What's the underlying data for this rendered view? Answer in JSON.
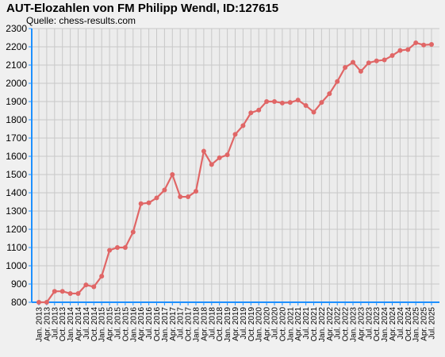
{
  "chart_data": {
    "type": "line",
    "title": "AUT-Elozahlen von FM Philipp Wendl, ID:127615",
    "subtitle": "Quelle: chess-results.com",
    "xlabel": "",
    "ylabel": "",
    "ylim": [
      800,
      2300
    ],
    "yticks": [
      800,
      900,
      1000,
      1100,
      1200,
      1300,
      1400,
      1500,
      1600,
      1700,
      1800,
      1900,
      2000,
      2100,
      2200,
      2300
    ],
    "grid": true,
    "x": [
      "Jan. 2013",
      "Apr. 2013",
      "Jul. 2013",
      "Oct. 2013",
      "Jan. 2014",
      "Apr. 2014",
      "Jul. 2014",
      "Oct. 2014",
      "Jan. 2015",
      "Apr. 2015",
      "Jul. 2015",
      "Oct. 2015",
      "Jan. 2016",
      "Apr. 2016",
      "Jul. 2016",
      "Oct. 2016",
      "Jan. 2017",
      "Apr. 2017",
      "Jul. 2017",
      "Oct. 2017",
      "Jan. 2018",
      "Apr. 2018",
      "Jul. 2018",
      "Oct. 2018",
      "Jan. 2019",
      "Apr. 2019",
      "Jul. 2019",
      "Oct. 2019",
      "Jan. 2020",
      "Apr. 2020",
      "Jul. 2020",
      "Oct. 2020",
      "Jan. 2021",
      "Apr. 2021",
      "Jul. 2021",
      "Oct. 2021",
      "Jan. 2022",
      "Apr. 2022",
      "Jul. 2022",
      "Oct. 2022",
      "Jan. 2023",
      "Apr. 2023",
      "Jul. 2023",
      "Oct. 2023",
      "Jan. 2024",
      "Apr. 2024",
      "Jul. 2024",
      "Oct. 2024",
      "Jan. 2025",
      "Apr. 2025",
      "Jul. 2025"
    ],
    "series": [
      {
        "color": "#e06666",
        "values": [
          800,
          800,
          860,
          860,
          848,
          848,
          895,
          885,
          943,
          1085,
          1100,
          1100,
          1185,
          1340,
          1345,
          1372,
          1415,
          1500,
          1378,
          1378,
          1408,
          1628,
          1555,
          1592,
          1608,
          1720,
          1768,
          1838,
          1853,
          1900,
          1900,
          1892,
          1895,
          1908,
          1878,
          1842,
          1895,
          1943,
          2010,
          2087,
          2115,
          2066,
          2112,
          2123,
          2128,
          2152,
          2180,
          2185,
          2222,
          2210,
          2213
        ]
      }
    ]
  }
}
